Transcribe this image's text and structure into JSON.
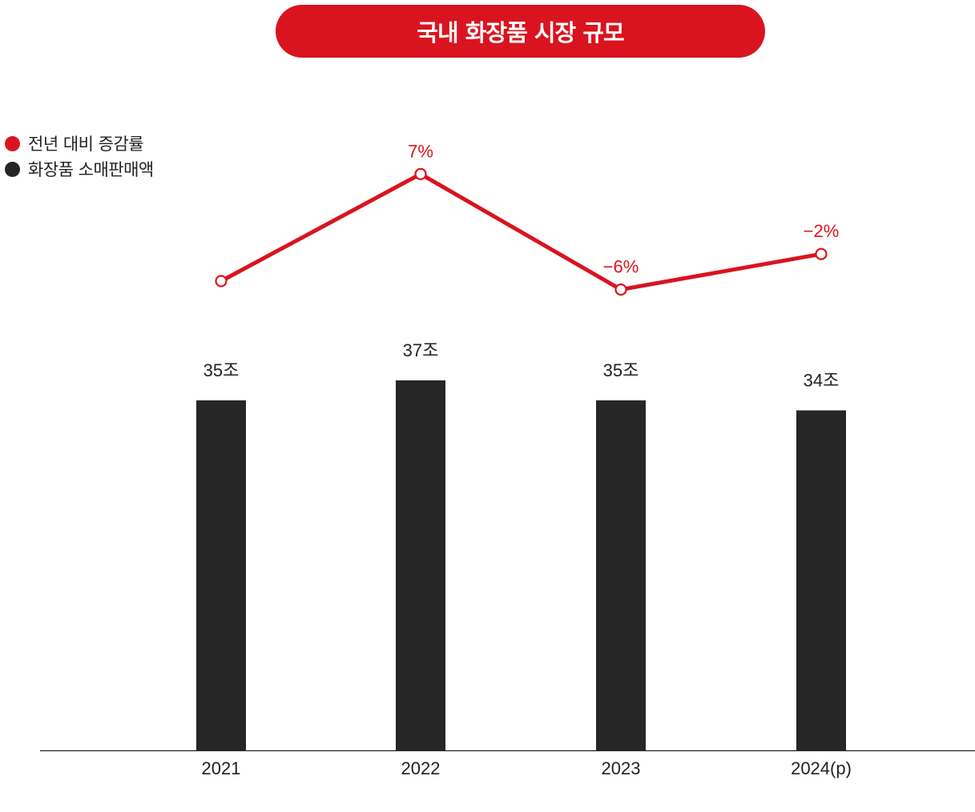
{
  "title": "국내 화장품 시장 규모",
  "legend": [
    {
      "label": "전년 대비 증감률",
      "color": "#d9141f"
    },
    {
      "label": "화장품 소매판매액",
      "color": "#262626"
    }
  ],
  "chart_data": {
    "type": "bar",
    "title": "국내 화장품 시장 규모",
    "categories": [
      "2021",
      "2022",
      "2023",
      "2024(p)"
    ],
    "series": [
      {
        "name": "화장품 소매판매액",
        "type": "bar",
        "color": "#262626",
        "values": [
          35,
          37,
          35,
          34
        ],
        "labels": [
          "35조",
          "37조",
          "35조",
          "34조"
        ]
      },
      {
        "name": "전년 대비 증감률",
        "type": "line",
        "color": "#d9141f",
        "values": [
          null,
          7,
          -6,
          -2
        ],
        "labels": [
          "",
          "7%",
          "−6%",
          "−2%"
        ]
      }
    ],
    "xlabel": "",
    "ylabel": "",
    "grid": false,
    "legend_position": "top-left"
  }
}
